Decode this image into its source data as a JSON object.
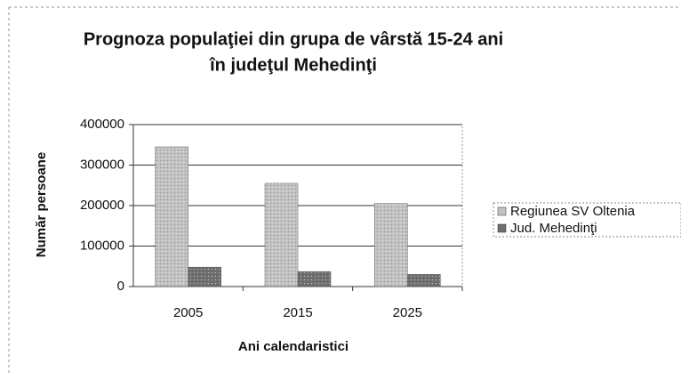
{
  "chart_data": {
    "type": "bar",
    "title": [
      "Prognoza populaţiei din grupa de vârstă 15-24 ani",
      "în judeţul Mehedinţi"
    ],
    "x_label": "Ani calendaristici",
    "y_label": "Număr persoane",
    "categories": [
      "2005",
      "2015",
      "2025"
    ],
    "series": [
      {
        "name": "Regiunea SV Oltenia",
        "color": "#c2c2c2",
        "values": [
          345000,
          255000,
          205000
        ]
      },
      {
        "name": "Jud. Mehedinţi",
        "color": "#6e6e6e",
        "values": [
          48000,
          37000,
          30000
        ]
      }
    ],
    "ylim": [
      0,
      400000
    ],
    "yticks": [
      0,
      100000,
      200000,
      300000,
      400000
    ],
    "grid": true,
    "legend": "right"
  }
}
